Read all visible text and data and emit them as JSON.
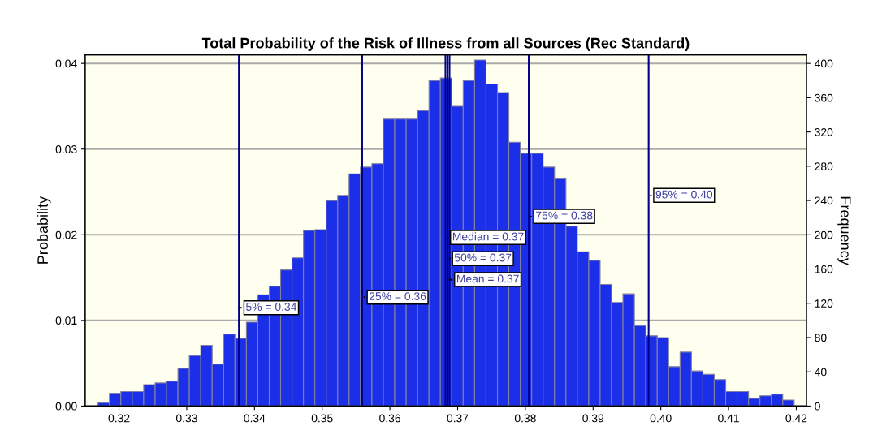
{
  "chart_data": {
    "type": "histogram",
    "title": "Total Probability of the Risk of Illness from all Sources (Rec Standard)",
    "ylabel": "Probability",
    "y2label": "Frequency",
    "bins": [
      0.3169,
      0.31859,
      0.32027,
      0.32196,
      0.32364,
      0.32533,
      0.32701,
      0.3287,
      0.33038,
      0.33207,
      0.33375,
      0.33544,
      0.33712,
      0.33881,
      0.34049,
      0.34218,
      0.34386,
      0.34555,
      0.34723,
      0.34892,
      0.3506,
      0.35229,
      0.35397,
      0.35566,
      0.35734,
      0.35903,
      0.36071,
      0.3624,
      0.36408,
      0.36577,
      0.36745,
      0.36914,
      0.37082,
      0.37251,
      0.37419,
      0.37588,
      0.37756,
      0.37925,
      0.38093,
      0.38262,
      0.3843,
      0.38599,
      0.38767,
      0.38936,
      0.39104,
      0.39273,
      0.39441,
      0.3961,
      0.39778,
      0.39947,
      0.40115,
      0.40284,
      0.40452,
      0.40621,
      0.40789,
      0.40958,
      0.41126,
      0.41295,
      0.41463,
      0.41632,
      0.418,
      0.41969
    ],
    "values": [
      0.0004,
      0.0015,
      0.0017,
      0.0017,
      0.0025,
      0.0027,
      0.0029,
      0.0044,
      0.0059,
      0.0071,
      0.0049,
      0.0084,
      0.0079,
      0.0098,
      0.013,
      0.014,
      0.0159,
      0.0173,
      0.0205,
      0.0206,
      0.024,
      0.0246,
      0.0271,
      0.0279,
      0.0283,
      0.0335,
      0.0335,
      0.0335,
      0.0345,
      0.038,
      0.0383,
      0.035,
      0.038,
      0.0404,
      0.0376,
      0.0366,
      0.0308,
      0.0295,
      0.0295,
      0.0279,
      0.0266,
      0.021,
      0.018,
      0.017,
      0.0142,
      0.0121,
      0.0131,
      0.0094,
      0.0082,
      0.008,
      0.0046,
      0.0063,
      0.0041,
      0.0037,
      0.0031,
      0.0017,
      0.0017,
      0.0009,
      0.0012,
      0.0014,
      0.0007
    ],
    "color": "#1c2fe8",
    "xlim": [
      0.315,
      0.4215
    ],
    "xticks": [
      0.32,
      0.33,
      0.34,
      0.35,
      0.36,
      0.37,
      0.38,
      0.39,
      {
        "value": 0.4,
        "label": "0.40"
      },
      0.41,
      0.42
    ],
    "ylim": [
      0,
      0.041
    ],
    "yticks": [
      {
        "value": 0,
        "label": "0.00"
      },
      0.01,
      0.02,
      0.03,
      0.04
    ],
    "y2lim": [
      0,
      410
    ],
    "y2ticks": [
      0,
      40,
      80,
      120,
      160,
      200,
      240,
      280,
      320,
      360,
      400
    ],
    "grid": "y",
    "ref_lines": [
      {
        "axis": "x",
        "value": 0.3377,
        "label": "5% = 0.34",
        "color": "#00008b"
      },
      {
        "axis": "x",
        "value": 0.3559,
        "label": "25% = 0.36",
        "color": "#00008b"
      },
      {
        "axis": "x",
        "value": 0.3682,
        "label": "Median = 0.37",
        "color": "#00008b"
      },
      {
        "axis": "x",
        "value": 0.3685,
        "label": "50% = 0.37",
        "color": "#00008b"
      },
      {
        "axis": "x",
        "value": 0.3688,
        "label": "Mean = 0.37",
        "color": "#00008b"
      },
      {
        "axis": "x",
        "value": 0.3805,
        "label": "75% = 0.38",
        "color": "#00008b"
      },
      {
        "axis": "x",
        "value": 0.3982,
        "label": "95% = 0.40",
        "color": "#00008b"
      }
    ]
  }
}
